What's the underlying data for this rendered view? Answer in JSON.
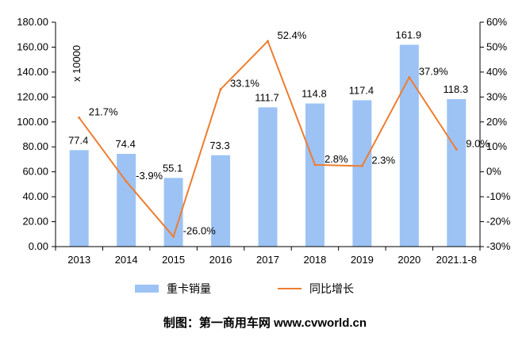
{
  "chart_data": {
    "type": "bar",
    "categories": [
      "2013",
      "2014",
      "2015",
      "2016",
      "2017",
      "2018",
      "2019",
      "2020",
      "2021.1-8"
    ],
    "series": [
      {
        "name": "重卡销量",
        "type": "bar",
        "axis": "left",
        "values": [
          77.4,
          74.4,
          55.1,
          73.3,
          111.7,
          114.8,
          117.4,
          161.9,
          118.3
        ],
        "labels": [
          "77.4",
          "74.4",
          "55.1",
          "73.3",
          "111.7",
          "114.8",
          "117.4",
          "161.9",
          "118.3"
        ],
        "color": "#9DC3F5"
      },
      {
        "name": "同比增长",
        "type": "line",
        "axis": "right",
        "values": [
          21.7,
          -3.9,
          -26.0,
          33.1,
          52.4,
          2.8,
          2.3,
          37.9,
          9.0
        ],
        "labels": [
          "21.7%",
          "-3.9%",
          "-26.0%",
          "33.1%",
          "52.4%",
          "2.8%",
          "2.3%",
          "37.9%",
          "9.0%"
        ],
        "color": "#ED7D31"
      }
    ],
    "ylim": [
      0,
      180
    ],
    "y_ticks": [
      "0.00",
      "20.00",
      "40.00",
      "60.00",
      "80.00",
      "100.00",
      "120.00",
      "140.00",
      "160.00",
      "180.00"
    ],
    "y2lim": [
      -30,
      60
    ],
    "y2_ticks": [
      "-30%",
      "-20%",
      "-10%",
      "0%",
      "10%",
      "20%",
      "30%",
      "40%",
      "50%",
      "60%"
    ],
    "unit_label": "x 10000",
    "grid": false,
    "legend_position": "bottom"
  },
  "credit": "制图：第一商用车网 www.cvworld.cn"
}
